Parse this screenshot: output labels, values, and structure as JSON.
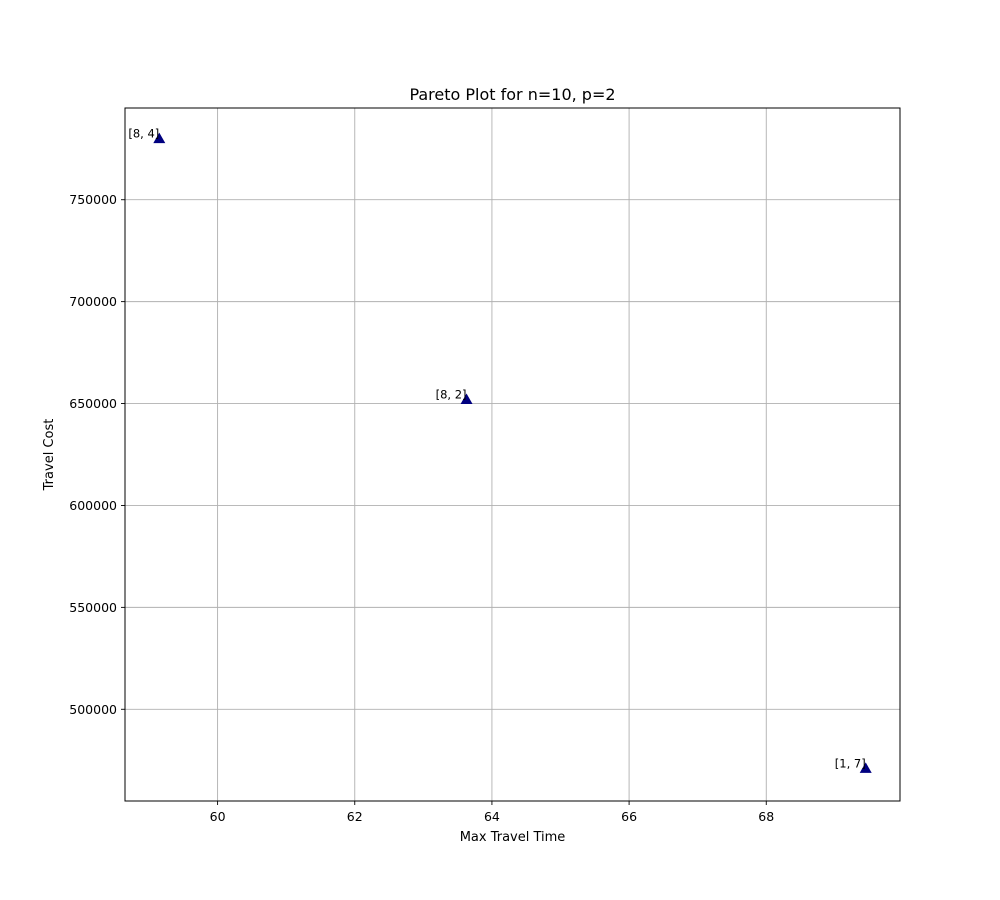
{
  "chart_data": {
    "type": "scatter",
    "title": "Pareto Plot for n=10, p=2",
    "xlabel": "Max Travel Time",
    "ylabel": "Travel Cost",
    "xlim": [
      58.65,
      69.95
    ],
    "ylim": [
      455000,
      795000
    ],
    "xticks": [
      60,
      62,
      64,
      66,
      68
    ],
    "yticks": [
      500000,
      550000,
      600000,
      650000,
      700000,
      750000
    ],
    "xtick_labels": [
      "60",
      "62",
      "64",
      "66",
      "68"
    ],
    "ytick_labels": [
      "500000",
      "550000",
      "600000",
      "650000",
      "700000",
      "750000"
    ],
    "grid": true,
    "marker": "triangle",
    "marker_color": "#000080",
    "points": [
      {
        "x": 59.15,
        "y": 780000,
        "label": "[8, 4]"
      },
      {
        "x": 63.63,
        "y": 652000,
        "label": "[8, 2]"
      },
      {
        "x": 69.45,
        "y": 471000,
        "label": "[1, 7]"
      }
    ]
  }
}
